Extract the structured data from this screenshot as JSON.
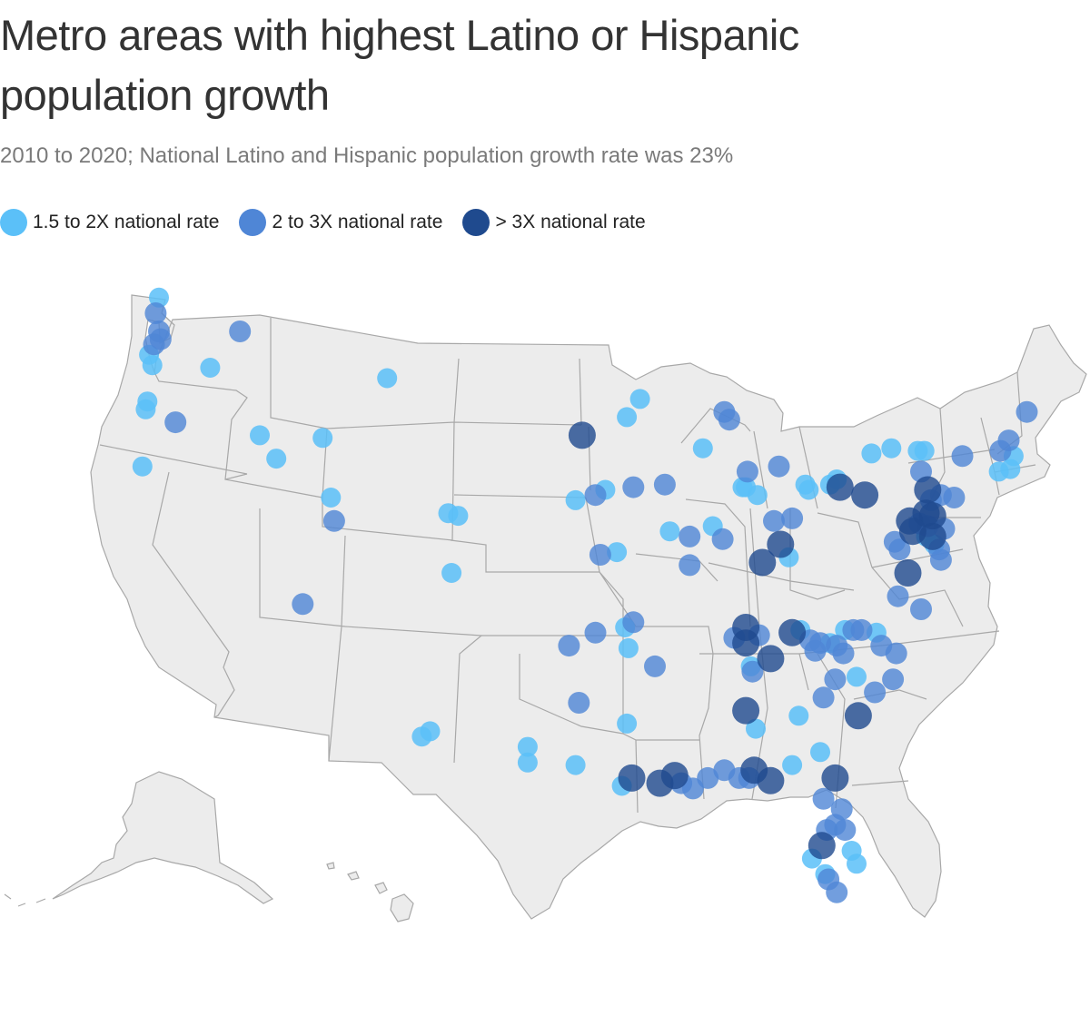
{
  "title": "Metro areas with highest Latino or Hispanic population growth",
  "subtitle": "2010 to 2020; National Latino and Hispanic population growth rate was 23%",
  "legend": [
    {
      "label": "1.5 to 2X national rate",
      "color": "#5bc0f8",
      "category": "low"
    },
    {
      "label": "2 to 3X national rate",
      "color": "#4f86d6",
      "category": "mid"
    },
    {
      "label": "> 3X national rate",
      "color": "#1f4a8e",
      "category": "high"
    }
  ],
  "map_data": {
    "type": "symbol-map",
    "region": "United States",
    "colors": {
      "low": "#5bc0f8",
      "mid": "#4f86d6",
      "high": "#1f4a8e",
      "land": "#ececec",
      "border": "#a8a8a8"
    },
    "metros": [
      {
        "lon": -122.3,
        "lat": 48.9,
        "cat": "low"
      },
      {
        "lon": -122.5,
        "lat": 48.3,
        "cat": "mid"
      },
      {
        "lon": -122.3,
        "lat": 47.6,
        "cat": "mid"
      },
      {
        "lon": -122.2,
        "lat": 47.3,
        "cat": "mid"
      },
      {
        "lon": -122.6,
        "lat": 47.1,
        "cat": "mid"
      },
      {
        "lon": -122.9,
        "lat": 46.7,
        "cat": "low"
      },
      {
        "lon": -122.7,
        "lat": 46.3,
        "cat": "low"
      },
      {
        "lon": -117.4,
        "lat": 47.6,
        "cat": "mid"
      },
      {
        "lon": -119.2,
        "lat": 46.2,
        "cat": "low"
      },
      {
        "lon": -123.0,
        "lat": 44.9,
        "cat": "low"
      },
      {
        "lon": -123.1,
        "lat": 44.6,
        "cat": "low"
      },
      {
        "lon": -121.3,
        "lat": 44.1,
        "cat": "mid"
      },
      {
        "lon": -123.3,
        "lat": 42.4,
        "cat": "low"
      },
      {
        "lon": -116.2,
        "lat": 43.6,
        "cat": "low"
      },
      {
        "lon": -115.2,
        "lat": 42.7,
        "cat": "low"
      },
      {
        "lon": -112.4,
        "lat": 43.5,
        "cat": "low"
      },
      {
        "lon": -108.5,
        "lat": 45.8,
        "cat": "low"
      },
      {
        "lon": -111.9,
        "lat": 41.2,
        "cat": "low"
      },
      {
        "lon": -111.7,
        "lat": 40.3,
        "cat": "mid"
      },
      {
        "lon": -113.6,
        "lat": 37.1,
        "cat": "mid"
      },
      {
        "lon": -104.8,
        "lat": 40.6,
        "cat": "low"
      },
      {
        "lon": -104.2,
        "lat": 40.5,
        "cat": "low"
      },
      {
        "lon": -104.6,
        "lat": 38.3,
        "cat": "low"
      },
      {
        "lon": -106.4,
        "lat": 32.0,
        "cat": "low"
      },
      {
        "lon": -105.9,
        "lat": 32.2,
        "cat": "low"
      },
      {
        "lon": -100.0,
        "lat": 31.6,
        "cat": "low"
      },
      {
        "lon": -100.0,
        "lat": 31.0,
        "cat": "low"
      },
      {
        "lon": -97.1,
        "lat": 30.9,
        "cat": "low"
      },
      {
        "lon": -96.7,
        "lat": 43.6,
        "cat": "high"
      },
      {
        "lon": -97.1,
        "lat": 41.1,
        "cat": "low"
      },
      {
        "lon": -95.9,
        "lat": 41.3,
        "cat": "mid"
      },
      {
        "lon": -95.3,
        "lat": 41.5,
        "cat": "low"
      },
      {
        "lon": -95.6,
        "lat": 39.0,
        "cat": "mid"
      },
      {
        "lon": -94.6,
        "lat": 39.1,
        "cat": "low"
      },
      {
        "lon": -94.1,
        "lat": 36.2,
        "cat": "low"
      },
      {
        "lon": -93.6,
        "lat": 36.4,
        "cat": "mid"
      },
      {
        "lon": -93.9,
        "lat": 35.4,
        "cat": "low"
      },
      {
        "lon": -95.9,
        "lat": 36.0,
        "cat": "mid"
      },
      {
        "lon": -97.5,
        "lat": 35.5,
        "cat": "mid"
      },
      {
        "lon": -96.9,
        "lat": 33.3,
        "cat": "mid"
      },
      {
        "lon": -92.3,
        "lat": 34.7,
        "cat": "mid"
      },
      {
        "lon": -94.0,
        "lat": 32.5,
        "cat": "low"
      },
      {
        "lon": -94.3,
        "lat": 30.1,
        "cat": "low"
      },
      {
        "lon": -93.7,
        "lat": 30.4,
        "cat": "high"
      },
      {
        "lon": -92.0,
        "lat": 30.2,
        "cat": "high"
      },
      {
        "lon": -91.1,
        "lat": 30.5,
        "cat": "high"
      },
      {
        "lon": -90.7,
        "lat": 30.2,
        "cat": "mid"
      },
      {
        "lon": -90.0,
        "lat": 30.0,
        "cat": "mid"
      },
      {
        "lon": -89.1,
        "lat": 30.4,
        "cat": "mid"
      },
      {
        "lon": -94.0,
        "lat": 44.3,
        "cat": "low"
      },
      {
        "lon": -93.2,
        "lat": 45.0,
        "cat": "low"
      },
      {
        "lon": -93.6,
        "lat": 41.6,
        "cat": "mid"
      },
      {
        "lon": -91.7,
        "lat": 41.7,
        "cat": "mid"
      },
      {
        "lon": -91.4,
        "lat": 39.9,
        "cat": "low"
      },
      {
        "lon": -90.2,
        "lat": 39.7,
        "cat": "mid"
      },
      {
        "lon": -90.2,
        "lat": 38.6,
        "cat": "mid"
      },
      {
        "lon": -89.4,
        "lat": 43.1,
        "cat": "low"
      },
      {
        "lon": -88.1,
        "lat": 44.5,
        "cat": "mid"
      },
      {
        "lon": -87.8,
        "lat": 44.2,
        "cat": "mid"
      },
      {
        "lon": -88.8,
        "lat": 40.1,
        "cat": "low"
      },
      {
        "lon": -88.2,
        "lat": 39.6,
        "cat": "mid"
      },
      {
        "lon": -87.0,
        "lat": 41.6,
        "cat": "low"
      },
      {
        "lon": -86.8,
        "lat": 41.6,
        "cat": "low"
      },
      {
        "lon": -86.1,
        "lat": 41.3,
        "cat": "low"
      },
      {
        "lon": -86.7,
        "lat": 42.2,
        "cat": "mid"
      },
      {
        "lon": -84.8,
        "lat": 42.4,
        "cat": "mid"
      },
      {
        "lon": -83.2,
        "lat": 41.7,
        "cat": "low"
      },
      {
        "lon": -83.0,
        "lat": 41.5,
        "cat": "low"
      },
      {
        "lon": -85.1,
        "lat": 40.3,
        "cat": "mid"
      },
      {
        "lon": -84.0,
        "lat": 40.4,
        "cat": "mid"
      },
      {
        "lon": -84.7,
        "lat": 39.4,
        "cat": "high"
      },
      {
        "lon": -85.8,
        "lat": 38.7,
        "cat": "high"
      },
      {
        "lon": -84.2,
        "lat": 38.9,
        "cat": "low"
      },
      {
        "lon": -86.8,
        "lat": 36.2,
        "cat": "high"
      },
      {
        "lon": -86.8,
        "lat": 35.6,
        "cat": "high"
      },
      {
        "lon": -87.5,
        "lat": 35.8,
        "cat": "mid"
      },
      {
        "lon": -86.0,
        "lat": 35.9,
        "cat": "mid"
      },
      {
        "lon": -86.5,
        "lat": 34.7,
        "cat": "low"
      },
      {
        "lon": -86.4,
        "lat": 34.5,
        "cat": "mid"
      },
      {
        "lon": -85.3,
        "lat": 35.0,
        "cat": "high"
      },
      {
        "lon": -84.0,
        "lat": 36.0,
        "cat": "high"
      },
      {
        "lon": -83.5,
        "lat": 36.1,
        "cat": "low"
      },
      {
        "lon": -82.9,
        "lat": 35.7,
        "cat": "mid"
      },
      {
        "lon": -82.6,
        "lat": 35.3,
        "cat": "mid"
      },
      {
        "lon": -82.3,
        "lat": 35.6,
        "cat": "mid"
      },
      {
        "lon": -81.7,
        "lat": 35.6,
        "cat": "low"
      },
      {
        "lon": -81.3,
        "lat": 35.5,
        "cat": "mid"
      },
      {
        "lon": -80.8,
        "lat": 36.1,
        "cat": "low"
      },
      {
        "lon": -80.3,
        "lat": 36.1,
        "cat": "mid"
      },
      {
        "lon": -79.8,
        "lat": 36.1,
        "cat": "mid"
      },
      {
        "lon": -78.9,
        "lat": 36.0,
        "cat": "low"
      },
      {
        "lon": -78.6,
        "lat": 35.5,
        "cat": "mid"
      },
      {
        "lon": -77.7,
        "lat": 35.2,
        "cat": "mid"
      },
      {
        "lon": -77.9,
        "lat": 34.2,
        "cat": "mid"
      },
      {
        "lon": -80.9,
        "lat": 35.2,
        "cat": "mid"
      },
      {
        "lon": -81.4,
        "lat": 34.2,
        "cat": "mid"
      },
      {
        "lon": -80.1,
        "lat": 34.3,
        "cat": "low"
      },
      {
        "lon": -82.1,
        "lat": 33.5,
        "cat": "mid"
      },
      {
        "lon": -79.0,
        "lat": 33.7,
        "cat": "mid"
      },
      {
        "lon": -80.0,
        "lat": 32.8,
        "cat": "high"
      },
      {
        "lon": -83.6,
        "lat": 32.8,
        "cat": "low"
      },
      {
        "lon": -86.8,
        "lat": 33.0,
        "cat": "high"
      },
      {
        "lon": -86.2,
        "lat": 32.3,
        "cat": "low"
      },
      {
        "lon": -88.1,
        "lat": 30.7,
        "cat": "mid"
      },
      {
        "lon": -87.2,
        "lat": 30.4,
        "cat": "mid"
      },
      {
        "lon": -86.6,
        "lat": 30.4,
        "cat": "mid"
      },
      {
        "lon": -86.3,
        "lat": 30.7,
        "cat": "high"
      },
      {
        "lon": -85.3,
        "lat": 30.3,
        "cat": "high"
      },
      {
        "lon": -84.0,
        "lat": 30.9,
        "cat": "low"
      },
      {
        "lon": -82.3,
        "lat": 31.4,
        "cat": "low"
      },
      {
        "lon": -81.4,
        "lat": 30.4,
        "cat": "high"
      },
      {
        "lon": -82.1,
        "lat": 29.6,
        "cat": "mid"
      },
      {
        "lon": -81.0,
        "lat": 29.2,
        "cat": "mid"
      },
      {
        "lon": -81.4,
        "lat": 28.6,
        "cat": "mid"
      },
      {
        "lon": -81.9,
        "lat": 28.4,
        "cat": "mid"
      },
      {
        "lon": -80.8,
        "lat": 28.4,
        "cat": "mid"
      },
      {
        "lon": -82.2,
        "lat": 27.8,
        "cat": "high"
      },
      {
        "lon": -80.4,
        "lat": 27.6,
        "cat": "low"
      },
      {
        "lon": -80.1,
        "lat": 27.1,
        "cat": "low"
      },
      {
        "lon": -82.8,
        "lat": 27.3,
        "cat": "low"
      },
      {
        "lon": -81.8,
        "lat": 26.5,
        "cat": "mid"
      },
      {
        "lon": -82.0,
        "lat": 26.7,
        "cat": "low"
      },
      {
        "lon": -81.3,
        "lat": 26.0,
        "cat": "mid"
      },
      {
        "lon": -81.1,
        "lat": 41.6,
        "cat": "high"
      },
      {
        "lon": -79.6,
        "lat": 41.3,
        "cat": "high"
      },
      {
        "lon": -81.7,
        "lat": 41.7,
        "cat": "low"
      },
      {
        "lon": -81.3,
        "lat": 41.9,
        "cat": "low"
      },
      {
        "lon": -79.2,
        "lat": 42.9,
        "cat": "low"
      },
      {
        "lon": -78.0,
        "lat": 43.1,
        "cat": "low"
      },
      {
        "lon": -76.4,
        "lat": 43.0,
        "cat": "low"
      },
      {
        "lon": -76.0,
        "lat": 43.0,
        "cat": "low"
      },
      {
        "lon": -76.2,
        "lat": 42.2,
        "cat": "mid"
      },
      {
        "lon": -75.8,
        "lat": 41.5,
        "cat": "high"
      },
      {
        "lon": -75.6,
        "lat": 41.1,
        "cat": "mid"
      },
      {
        "lon": -75.0,
        "lat": 41.3,
        "cat": "mid"
      },
      {
        "lon": -74.2,
        "lat": 41.2,
        "cat": "mid"
      },
      {
        "lon": -73.7,
        "lat": 42.8,
        "cat": "mid"
      },
      {
        "lon": -76.9,
        "lat": 40.3,
        "cat": "high"
      },
      {
        "lon": -76.3,
        "lat": 40.2,
        "cat": "mid"
      },
      {
        "lon": -75.9,
        "lat": 40.6,
        "cat": "high"
      },
      {
        "lon": -75.5,
        "lat": 40.5,
        "cat": "high"
      },
      {
        "lon": -76.7,
        "lat": 39.9,
        "cat": "high"
      },
      {
        "lon": -75.8,
        "lat": 40.1,
        "cat": "mid"
      },
      {
        "lon": -75.5,
        "lat": 39.7,
        "cat": "high"
      },
      {
        "lon": -75.9,
        "lat": 39.7,
        "cat": "low"
      },
      {
        "lon": -75.4,
        "lat": 39.4,
        "cat": "low"
      },
      {
        "lon": -74.8,
        "lat": 40.0,
        "cat": "mid"
      },
      {
        "lon": -75.1,
        "lat": 39.2,
        "cat": "mid"
      },
      {
        "lon": -75.0,
        "lat": 38.8,
        "cat": "mid"
      },
      {
        "lon": -77.8,
        "lat": 39.5,
        "cat": "mid"
      },
      {
        "lon": -77.5,
        "lat": 39.2,
        "cat": "mid"
      },
      {
        "lon": -77.0,
        "lat": 38.3,
        "cat": "high"
      },
      {
        "lon": -77.6,
        "lat": 37.4,
        "cat": "mid"
      },
      {
        "lon": -76.2,
        "lat": 36.9,
        "cat": "mid"
      },
      {
        "lon": -71.4,
        "lat": 43.0,
        "cat": "mid"
      },
      {
        "lon": -70.9,
        "lat": 43.4,
        "cat": "mid"
      },
      {
        "lon": -70.6,
        "lat": 42.8,
        "cat": "low"
      },
      {
        "lon": -70.8,
        "lat": 42.3,
        "cat": "low"
      },
      {
        "lon": -71.5,
        "lat": 42.2,
        "cat": "low"
      },
      {
        "lon": -69.8,
        "lat": 44.5,
        "cat": "mid"
      }
    ]
  }
}
